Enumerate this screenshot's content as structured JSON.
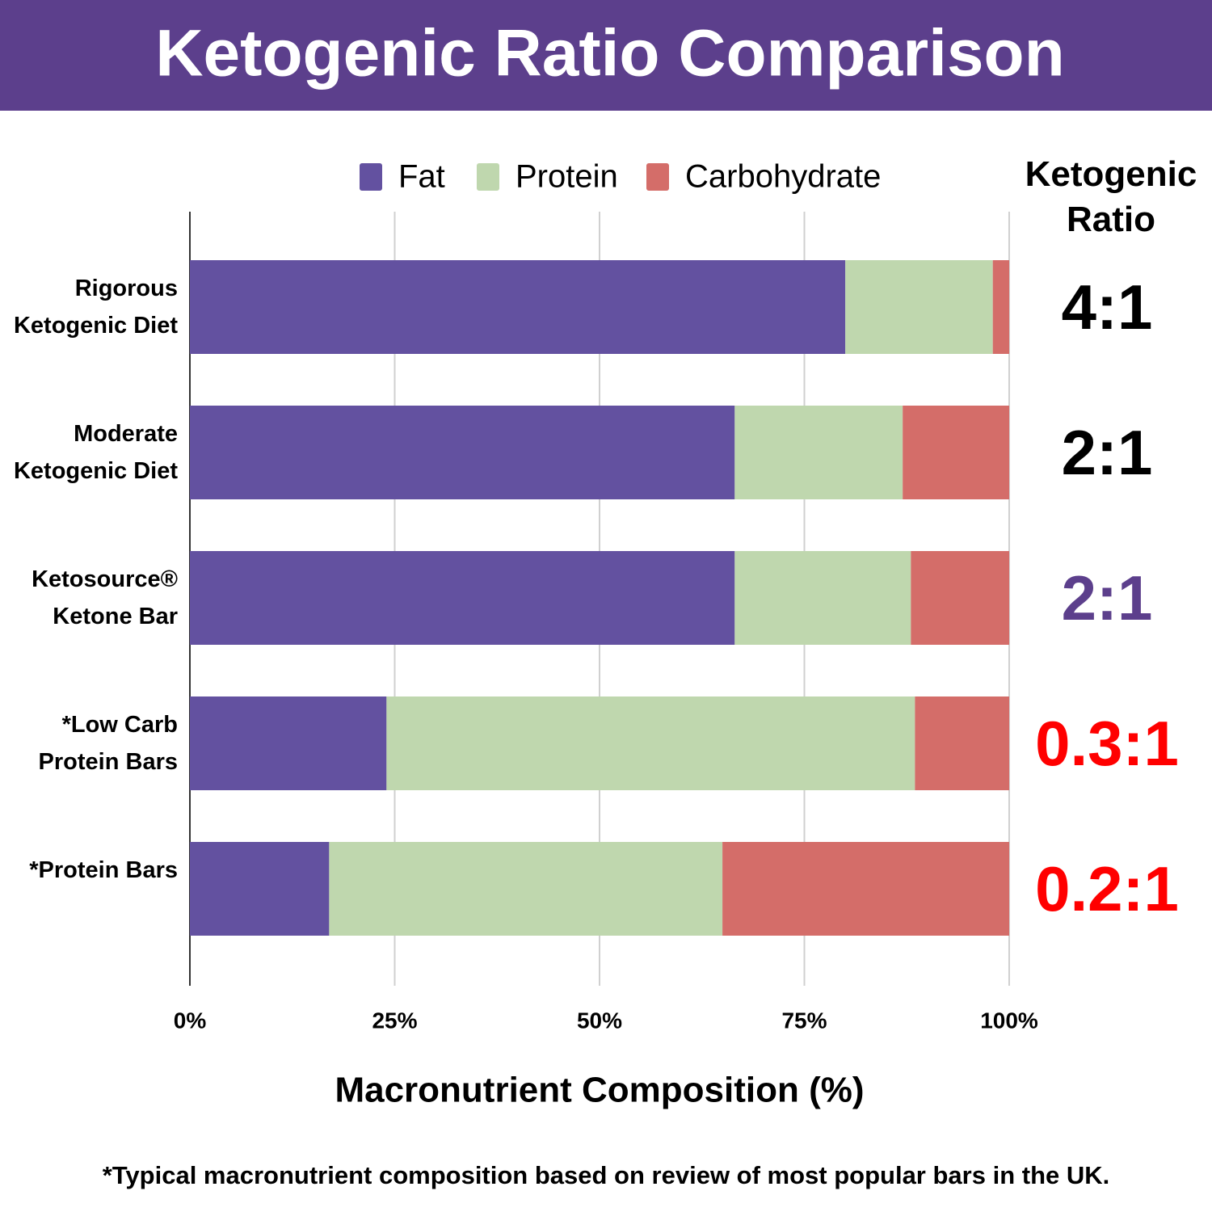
{
  "chart_data": {
    "type": "stacked-bar-horizontal",
    "title": "Ketogenic Ratio Comparison",
    "categories": [
      "Rigorous\nKetogenic Diet",
      "Moderate\nKetogenic Diet",
      "Ketosource®\nKetone Bar",
      "*Low Carb\nProtein Bars",
      "*Protein Bars"
    ],
    "series": [
      {
        "name": "Fat",
        "color": "#6351a0",
        "values": [
          80,
          66.5,
          66.5,
          24,
          17
        ]
      },
      {
        "name": "Protein",
        "color": "#bfd7ae",
        "values": [
          18,
          20.5,
          21.5,
          64.5,
          48
        ]
      },
      {
        "name": "Carbohydrate",
        "color": "#d46d69",
        "values": [
          2,
          13,
          12,
          11.5,
          35
        ]
      }
    ],
    "xlim": [
      0,
      100
    ],
    "xticks": [
      {
        "value": 0,
        "label": "0%"
      },
      {
        "value": 25,
        "label": "25%"
      },
      {
        "value": 50,
        "label": "50%"
      },
      {
        "value": 75,
        "label": "75%"
      },
      {
        "value": 100,
        "label": "100%"
      }
    ],
    "grid": true,
    "x_axis_label": "Macronutrient Composition (%)",
    "ratio_header": "Ketogenic\nRatio",
    "ratio_labels": [
      "4:1",
      "2:1",
      "2:1",
      "0.3:1",
      "0.2:1"
    ],
    "ratio_colors": [
      "#000000",
      "#000000",
      "#5c3f8c",
      "#ff0000",
      "#ff0000"
    ],
    "footnote": "*Typical macronutrient composition based on review of most popular bars in the UK."
  }
}
